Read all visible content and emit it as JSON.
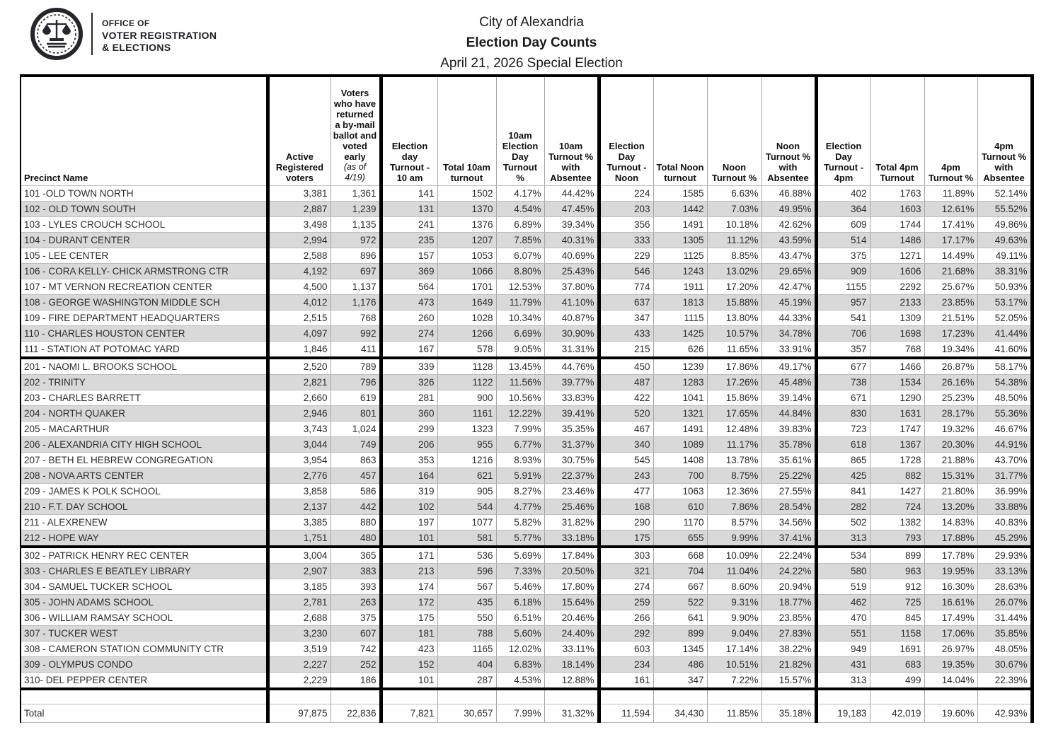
{
  "header": {
    "logo": {
      "line1": "OFFICE OF",
      "line2": "VOTER REGISTRATION",
      "line3": "& ELECTIONS"
    },
    "title": "City of Alexandria",
    "subtitle": "Election Day Counts",
    "date_line": "April 21, 2026 Special Election"
  },
  "table": {
    "columns": [
      "Precinct Name",
      "Active Registered voters",
      "Voters who have returned a by-mail ballot and voted early",
      "Election day Turnout - 10 am",
      "Total 10am turnout",
      "10am Election Day Turnout %",
      "10am Turnout % with Absentee",
      "Election Day Turnout - Noon",
      "Total Noon turnout",
      "Noon Turnout %",
      "Noon Turnout % with Absentee",
      "Election Day Turnout - 4pm",
      "Total 4pm Turnout",
      "4pm Turnout %",
      "4pm Turnout % with Absentee"
    ],
    "columns_note": "(as of 4/19)",
    "sections": [
      [
        [
          "101 -OLD TOWN NORTH",
          "3,381",
          "1,361",
          "141",
          "1502",
          "4.17%",
          "44.42%",
          "224",
          "1585",
          "6.63%",
          "46.88%",
          "402",
          "1763",
          "11.89%",
          "52.14%"
        ],
        [
          "102 - OLD TOWN SOUTH",
          "2,887",
          "1,239",
          "131",
          "1370",
          "4.54%",
          "47.45%",
          "203",
          "1442",
          "7.03%",
          "49.95%",
          "364",
          "1603",
          "12.61%",
          "55.52%"
        ],
        [
          "103 - LYLES CROUCH SCHOOL",
          "3,498",
          "1,135",
          "241",
          "1376",
          "6.89%",
          "39.34%",
          "356",
          "1491",
          "10.18%",
          "42.62%",
          "609",
          "1744",
          "17.41%",
          "49.86%"
        ],
        [
          "104 - DURANT CENTER",
          "2,994",
          "972",
          "235",
          "1207",
          "7.85%",
          "40.31%",
          "333",
          "1305",
          "11.12%",
          "43.59%",
          "514",
          "1486",
          "17.17%",
          "49.63%"
        ],
        [
          "105 - LEE CENTER",
          "2,588",
          "896",
          "157",
          "1053",
          "6.07%",
          "40.69%",
          "229",
          "1125",
          "8.85%",
          "43.47%",
          "375",
          "1271",
          "14.49%",
          "49.11%"
        ],
        [
          "106 - CORA KELLY- CHICK ARMSTRONG CTR",
          "4,192",
          "697",
          "369",
          "1066",
          "8.80%",
          "25.43%",
          "546",
          "1243",
          "13.02%",
          "29.65%",
          "909",
          "1606",
          "21.68%",
          "38.31%"
        ],
        [
          "107 - MT VERNON RECREATION CENTER",
          "4,500",
          "1,137",
          "564",
          "1701",
          "12.53%",
          "37.80%",
          "774",
          "1911",
          "17.20%",
          "42.47%",
          "1155",
          "2292",
          "25.67%",
          "50.93%"
        ],
        [
          "108 - GEORGE WASHINGTON MIDDLE SCH",
          "4,012",
          "1,176",
          "473",
          "1649",
          "11.79%",
          "41.10%",
          "637",
          "1813",
          "15.88%",
          "45.19%",
          "957",
          "2133",
          "23.85%",
          "53.17%"
        ],
        [
          "109 - FIRE DEPARTMENT HEADQUARTERS",
          "2,515",
          "768",
          "260",
          "1028",
          "10.34%",
          "40.87%",
          "347",
          "1115",
          "13.80%",
          "44.33%",
          "541",
          "1309",
          "21.51%",
          "52.05%"
        ],
        [
          "110 - CHARLES HOUSTON CENTER",
          "4,097",
          "992",
          "274",
          "1266",
          "6.69%",
          "30.90%",
          "433",
          "1425",
          "10.57%",
          "34.78%",
          "706",
          "1698",
          "17.23%",
          "41.44%"
        ],
        [
          "111 - STATION AT POTOMAC YARD",
          "1,846",
          "411",
          "167",
          "578",
          "9.05%",
          "31.31%",
          "215",
          "626",
          "11.65%",
          "33.91%",
          "357",
          "768",
          "19.34%",
          "41.60%"
        ]
      ],
      [
        [
          "201 - NAOMI L. BROOKS SCHOOL",
          "2,520",
          "789",
          "339",
          "1128",
          "13.45%",
          "44.76%",
          "450",
          "1239",
          "17.86%",
          "49.17%",
          "677",
          "1466",
          "26.87%",
          "58.17%"
        ],
        [
          "202 - TRINITY",
          "2,821",
          "796",
          "326",
          "1122",
          "11.56%",
          "39.77%",
          "487",
          "1283",
          "17.26%",
          "45.48%",
          "738",
          "1534",
          "26.16%",
          "54.38%"
        ],
        [
          "203 - CHARLES BARRETT",
          "2,660",
          "619",
          "281",
          "900",
          "10.56%",
          "33.83%",
          "422",
          "1041",
          "15.86%",
          "39.14%",
          "671",
          "1290",
          "25.23%",
          "48.50%"
        ],
        [
          "204 - NORTH QUAKER",
          "2,946",
          "801",
          "360",
          "1161",
          "12.22%",
          "39.41%",
          "520",
          "1321",
          "17.65%",
          "44.84%",
          "830",
          "1631",
          "28.17%",
          "55.36%"
        ],
        [
          "205 - MACARTHUR",
          "3,743",
          "1,024",
          "299",
          "1323",
          "7.99%",
          "35.35%",
          "467",
          "1491",
          "12.48%",
          "39.83%",
          "723",
          "1747",
          "19.32%",
          "46.67%"
        ],
        [
          "206 - ALEXANDRIA CITY HIGH SCHOOL",
          "3,044",
          "749",
          "206",
          "955",
          "6.77%",
          "31.37%",
          "340",
          "1089",
          "11.17%",
          "35.78%",
          "618",
          "1367",
          "20.30%",
          "44.91%"
        ],
        [
          "207 -  BETH EL HEBREW CONGREGATION",
          "3,954",
          "863",
          "353",
          "1216",
          "8.93%",
          "30.75%",
          "545",
          "1408",
          "13.78%",
          "35.61%",
          "865",
          "1728",
          "21.88%",
          "43.70%"
        ],
        [
          "208 - NOVA ARTS CENTER",
          "2,776",
          "457",
          "164",
          "621",
          "5.91%",
          "22.37%",
          "243",
          "700",
          "8.75%",
          "25.22%",
          "425",
          "882",
          "15.31%",
          "31.77%"
        ],
        [
          "209 - JAMES K POLK SCHOOL",
          "3,858",
          "586",
          "319",
          "905",
          "8.27%",
          "23.46%",
          "477",
          "1063",
          "12.36%",
          "27.55%",
          "841",
          "1427",
          "21.80%",
          "36.99%"
        ],
        [
          "210 - F.T. DAY SCHOOL",
          "2,137",
          "442",
          "102",
          "544",
          "4.77%",
          "25.46%",
          "168",
          "610",
          "7.86%",
          "28.54%",
          "282",
          "724",
          "13.20%",
          "33.88%"
        ],
        [
          "211 - ALEXRENEW",
          "3,385",
          "880",
          "197",
          "1077",
          "5.82%",
          "31.82%",
          "290",
          "1170",
          "8.57%",
          "34.56%",
          "502",
          "1382",
          "14.83%",
          "40.83%"
        ],
        [
          "212 - HOPE WAY",
          "1,751",
          "480",
          "101",
          "581",
          "5.77%",
          "33.18%",
          "175",
          "655",
          "9.99%",
          "37.41%",
          "313",
          "793",
          "17.88%",
          "45.29%"
        ]
      ],
      [
        [
          "302 - PATRICK HENRY REC CENTER",
          "3,004",
          "365",
          "171",
          "536",
          "5.69%",
          "17.84%",
          "303",
          "668",
          "10.09%",
          "22.24%",
          "534",
          "899",
          "17.78%",
          "29.93%"
        ],
        [
          "303 - CHARLES E BEATLEY LIBRARY",
          "2,907",
          "383",
          "213",
          "596",
          "7.33%",
          "20.50%",
          "321",
          "704",
          "11.04%",
          "24.22%",
          "580",
          "963",
          "19.95%",
          "33.13%"
        ],
        [
          "304 - SAMUEL TUCKER SCHOOL",
          "3,185",
          "393",
          "174",
          "567",
          "5.46%",
          "17.80%",
          "274",
          "667",
          "8.60%",
          "20.94%",
          "519",
          "912",
          "16.30%",
          "28.63%"
        ],
        [
          "305 - JOHN ADAMS SCHOOL",
          "2,781",
          "263",
          "172",
          "435",
          "6.18%",
          "15.64%",
          "259",
          "522",
          "9.31%",
          "18.77%",
          "462",
          "725",
          "16.61%",
          "26.07%"
        ],
        [
          "306 - WILLIAM RAMSAY SCHOOL",
          "2,688",
          "375",
          "175",
          "550",
          "6.51%",
          "20.46%",
          "266",
          "641",
          "9.90%",
          "23.85%",
          "470",
          "845",
          "17.49%",
          "31.44%"
        ],
        [
          "307 - TUCKER WEST",
          "3,230",
          "607",
          "181",
          "788",
          "5.60%",
          "24.40%",
          "292",
          "899",
          "9.04%",
          "27.83%",
          "551",
          "1158",
          "17.06%",
          "35.85%"
        ],
        [
          "308 - CAMERON STATION COMMUNITY CTR",
          "3,519",
          "742",
          "423",
          "1165",
          "12.02%",
          "33.11%",
          "603",
          "1345",
          "17.14%",
          "38.22%",
          "949",
          "1691",
          "26.97%",
          "48.05%"
        ],
        [
          "309 - OLYMPUS CONDO",
          "2,227",
          "252",
          "152",
          "404",
          "6.83%",
          "18.14%",
          "234",
          "486",
          "10.51%",
          "21.82%",
          "431",
          "683",
          "19.35%",
          "30.67%"
        ],
        [
          "310- DEL PEPPER CENTER",
          "2,229",
          "186",
          "101",
          "287",
          "4.53%",
          "12.88%",
          "161",
          "347",
          "7.22%",
          "15.57%",
          "313",
          "499",
          "14.04%",
          "22.39%"
        ]
      ]
    ],
    "total_row": [
      "Total",
      "97,875",
      "22,836",
      "7,821",
      "30,657",
      "7.99%",
      "31.32%",
      "11,594",
      "34,430",
      "11.85%",
      "35.18%",
      "19,183",
      "42,019",
      "19.60%",
      "42.93%"
    ]
  },
  "colors": {
    "row_shade": "#d9d9d9",
    "grid_line": "#a6a6a6",
    "group_border": "#000000",
    "seal_ink": "#26262b"
  }
}
